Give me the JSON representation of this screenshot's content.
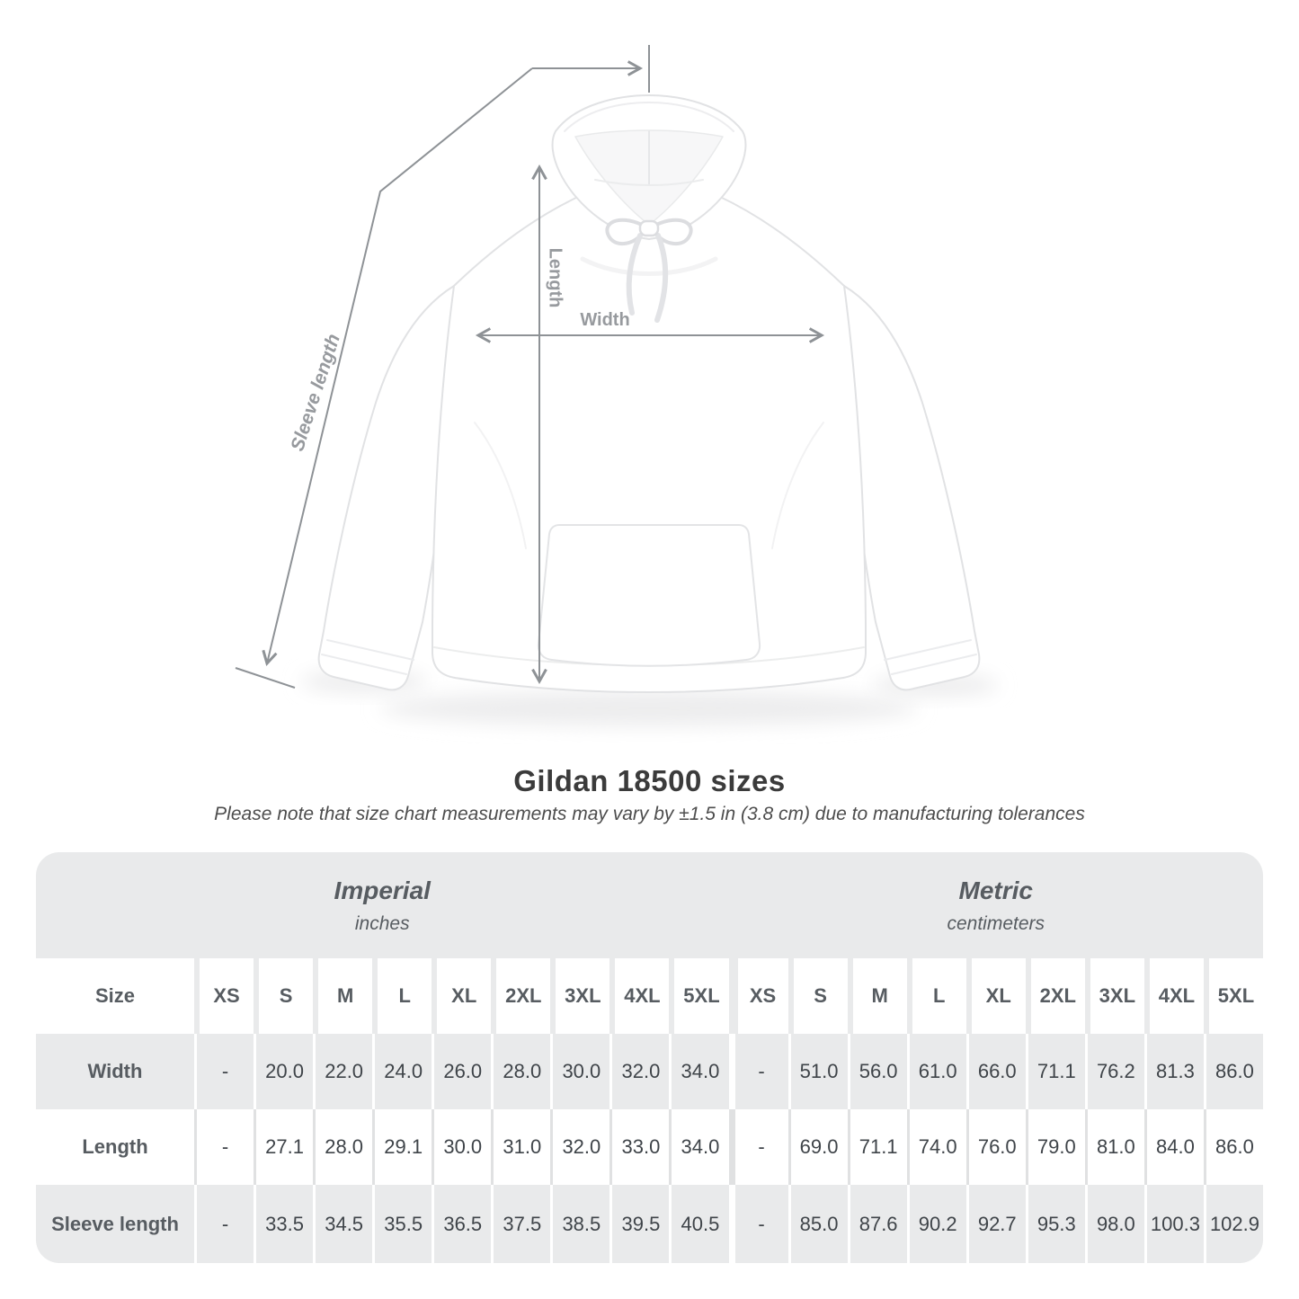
{
  "page": {
    "title": "Gildan 18500 sizes",
    "subtitle": "Please note that size chart measurements may vary by ±1.5 in (3.8 cm) due to manufacturing tolerances"
  },
  "diagram": {
    "labels": {
      "length": "Length",
      "width": "Width",
      "sleeve_length": "Sleeve length"
    }
  },
  "table": {
    "groups": [
      {
        "label": "Imperial",
        "unit": "inches"
      },
      {
        "label": "Metric",
        "unit": "centimeters"
      }
    ],
    "size_header": "Size",
    "sizes": [
      "XS",
      "S",
      "M",
      "L",
      "XL",
      "2XL",
      "3XL",
      "4XL",
      "5XL"
    ],
    "rows": [
      {
        "label": "Width",
        "imperial": [
          "-",
          "20.0",
          "22.0",
          "24.0",
          "26.0",
          "28.0",
          "30.0",
          "32.0",
          "34.0"
        ],
        "metric": [
          "-",
          "51.0",
          "56.0",
          "61.0",
          "66.0",
          "71.1",
          "76.2",
          "81.3",
          "86.0"
        ]
      },
      {
        "label": "Length",
        "imperial": [
          "-",
          "27.1",
          "28.0",
          "29.1",
          "30.0",
          "31.0",
          "32.0",
          "33.0",
          "34.0"
        ],
        "metric": [
          "-",
          "69.0",
          "71.1",
          "74.0",
          "76.0",
          "79.0",
          "81.0",
          "84.0",
          "86.0"
        ]
      },
      {
        "label": "Sleeve length",
        "imperial": [
          "-",
          "33.5",
          "34.5",
          "35.5",
          "36.5",
          "37.5",
          "38.5",
          "39.5",
          "40.5"
        ],
        "metric": [
          "-",
          "85.0",
          "87.6",
          "90.2",
          "92.7",
          "95.3",
          "98.0",
          "100.3",
          "102.9"
        ]
      }
    ]
  },
  "colors": {
    "table_gray": "#e9eaeb",
    "header_text": "#575c61",
    "data_text": "#3f4449",
    "annotation_line": "#8e9296",
    "annotation_label": "#979a9e",
    "title_text": "#3b3b3b"
  }
}
